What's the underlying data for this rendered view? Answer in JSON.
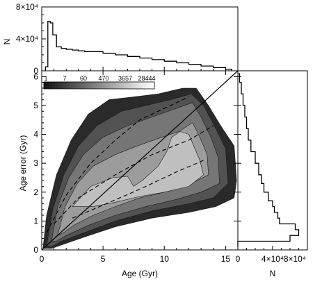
{
  "chart_data": [
    {
      "type": "heatmap",
      "name": "main-density",
      "xlabel": "Age (Gyr)",
      "ylabel": "Age error (Gyr)",
      "xlim": [
        0,
        16
      ],
      "ylim": [
        0,
        6.2
      ],
      "x_ticks": [
        "0",
        "5",
        "10",
        "15"
      ],
      "y_ticks": [
        "0",
        "1",
        "2",
        "3",
        "4",
        "5",
        "6"
      ],
      "colorbar_labels": [
        "1",
        "7",
        "60",
        "470",
        "3657",
        "28444"
      ],
      "contour_levels": [
        {
          "level": 1,
          "color": "#2a2a2a",
          "polygon": [
            [
              0.1,
              0.05
            ],
            [
              0.4,
              1.2
            ],
            [
              1.2,
              2.6
            ],
            [
              2.4,
              3.8
            ],
            [
              3.8,
              4.7
            ],
            [
              5.5,
              5.2
            ],
            [
              7.5,
              5.3
            ],
            [
              9.5,
              5.4
            ],
            [
              11.5,
              5.6
            ],
            [
              12.6,
              5.6
            ],
            [
              13.6,
              5.0
            ],
            [
              14.6,
              4.3
            ],
            [
              15.7,
              3.6
            ],
            [
              15.9,
              2.4
            ],
            [
              15.7,
              1.8
            ],
            [
              14.2,
              1.5
            ],
            [
              12.0,
              1.3
            ],
            [
              9.0,
              1.1
            ],
            [
              6.0,
              0.8
            ],
            [
              3.5,
              0.45
            ],
            [
              1.8,
              0.2
            ],
            [
              0.8,
              0.05
            ]
          ]
        },
        {
          "level": 7,
          "color": "#525252",
          "polygon": [
            [
              0.4,
              0.15
            ],
            [
              0.9,
              1.4
            ],
            [
              1.8,
              2.6
            ],
            [
              3.0,
              3.6
            ],
            [
              4.5,
              4.3
            ],
            [
              6.5,
              4.8
            ],
            [
              8.5,
              5.0
            ],
            [
              10.5,
              5.2
            ],
            [
              12.2,
              5.4
            ],
            [
              13.2,
              5.0
            ],
            [
              14.2,
              4.2
            ],
            [
              15.0,
              3.5
            ],
            [
              15.2,
              2.3
            ],
            [
              14.0,
              1.8
            ],
            [
              12.0,
              1.6
            ],
            [
              9.0,
              1.35
            ],
            [
              6.0,
              1.0
            ],
            [
              3.5,
              0.6
            ],
            [
              1.6,
              0.3
            ],
            [
              0.8,
              0.1
            ]
          ]
        },
        {
          "level": 60,
          "color": "#767676",
          "polygon": [
            [
              0.8,
              0.3
            ],
            [
              1.3,
              1.5
            ],
            [
              2.2,
              2.5
            ],
            [
              3.4,
              3.3
            ],
            [
              5.0,
              3.9
            ],
            [
              7.0,
              4.3
            ],
            [
              9.0,
              4.6
            ],
            [
              11.0,
              4.9
            ],
            [
              12.3,
              5.1
            ],
            [
              13.0,
              4.6
            ],
            [
              13.8,
              3.9
            ],
            [
              14.4,
              3.2
            ],
            [
              14.5,
              2.3
            ],
            [
              13.0,
              2.0
            ],
            [
              11.0,
              1.75
            ],
            [
              8.5,
              1.5
            ],
            [
              6.0,
              1.2
            ],
            [
              3.8,
              0.85
            ],
            [
              2.0,
              0.5
            ],
            [
              1.2,
              0.3
            ]
          ]
        },
        {
          "level": 470,
          "color": "#9c9c9c",
          "polygon": [
            [
              1.3,
              0.5
            ],
            [
              1.9,
              1.5
            ],
            [
              2.9,
              2.3
            ],
            [
              4.2,
              2.9
            ],
            [
              6.0,
              3.3
            ],
            [
              7.8,
              3.6
            ],
            [
              9.8,
              3.9
            ],
            [
              11.2,
              4.1
            ],
            [
              12.3,
              4.4
            ],
            [
              12.9,
              3.9
            ],
            [
              13.5,
              3.3
            ],
            [
              13.6,
              2.6
            ],
            [
              12.2,
              2.3
            ],
            [
              10.0,
              2.0
            ],
            [
              8.0,
              1.8
            ],
            [
              6.0,
              1.5
            ],
            [
              4.2,
              1.2
            ],
            [
              2.6,
              0.85
            ],
            [
              1.8,
              0.6
            ]
          ]
        },
        {
          "level": 3657,
          "color": "#bfbfbf",
          "polygon": [
            [
              2.5,
              1.5
            ],
            [
              4.0,
              2.2
            ],
            [
              5.8,
              2.5
            ],
            [
              7.0,
              2.55
            ],
            [
              7.5,
              2.2
            ],
            [
              8.2,
              2.4
            ],
            [
              9.5,
              2.9
            ],
            [
              10.2,
              3.4
            ],
            [
              10.6,
              3.9
            ],
            [
              11.3,
              4.1
            ],
            [
              12.0,
              4.0
            ],
            [
              12.5,
              3.5
            ],
            [
              12.9,
              3.1
            ],
            [
              13.2,
              2.6
            ],
            [
              12.0,
              2.2
            ],
            [
              10.0,
              2.0
            ],
            [
              8.0,
              1.85
            ],
            [
              6.0,
              1.65
            ],
            [
              4.2,
              1.5
            ]
          ]
        }
      ],
      "lines": [
        {
          "style": "solid",
          "from": [
            0,
            0
          ],
          "to": [
            16,
            6.2
          ]
        },
        {
          "style": "dashed",
          "points": [
            [
              0.4,
              0.6
            ],
            [
              2,
              1.9
            ],
            [
              4,
              3.0
            ],
            [
              6,
              3.8
            ],
            [
              8,
              4.5
            ],
            [
              10,
              4.9
            ],
            [
              12,
              5.3
            ]
          ]
        },
        {
          "style": "dashed",
          "points": [
            [
              1.0,
              0.9
            ],
            [
              3,
              1.8
            ],
            [
              6,
              2.6
            ],
            [
              9,
              3.3
            ],
            [
              12,
              3.8
            ],
            [
              14,
              4.3
            ]
          ]
        },
        {
          "style": "dashed",
          "points": [
            [
              2.5,
              1.1
            ],
            [
              5,
              1.55
            ],
            [
              8,
              2.1
            ],
            [
              11,
              2.7
            ],
            [
              13.2,
              3.1
            ]
          ]
        }
      ]
    },
    {
      "type": "line",
      "name": "top-histogram",
      "ylabel": "N",
      "xlim": [
        0,
        16
      ],
      "ylim": [
        0,
        80000
      ],
      "y_ticks": [
        "0",
        "4×10⁴",
        "8×10⁴"
      ],
      "x": [
        0.3,
        0.5,
        0.7,
        0.9,
        1.2,
        1.6,
        2.0,
        2.5,
        3.0,
        3.5,
        4.0,
        5.0,
        6.0,
        7.0,
        8.0,
        9.0,
        10.0,
        11.0,
        12.0,
        13.0,
        14.0,
        15.0,
        15.5
      ],
      "values": [
        5000,
        62000,
        60000,
        45000,
        30000,
        28000,
        27000,
        26000,
        25000,
        24000,
        24000,
        22000,
        20000,
        18000,
        16000,
        14000,
        12000,
        10000,
        8000,
        6000,
        4000,
        2000,
        0
      ]
    },
    {
      "type": "line",
      "name": "right-histogram",
      "xlabel": "N",
      "xlim": [
        0,
        80000
      ],
      "ylim": [
        0,
        6.2
      ],
      "x_ticks": [
        "0",
        "4×10⁴",
        "8×10⁴"
      ],
      "y": [
        0.1,
        0.3,
        0.5,
        0.7,
        0.9,
        1.1,
        1.3,
        1.5,
        1.7,
        2.0,
        2.3,
        2.6,
        3.0,
        3.4,
        3.8,
        4.2,
        4.6,
        5.0,
        5.4,
        5.8,
        6.1
      ],
      "values": [
        0,
        60000,
        70000,
        66000,
        48000,
        46000,
        42000,
        40000,
        35000,
        30000,
        27000,
        24000,
        20000,
        15000,
        12000,
        10000,
        8000,
        6000,
        4000,
        2000,
        0
      ]
    }
  ]
}
